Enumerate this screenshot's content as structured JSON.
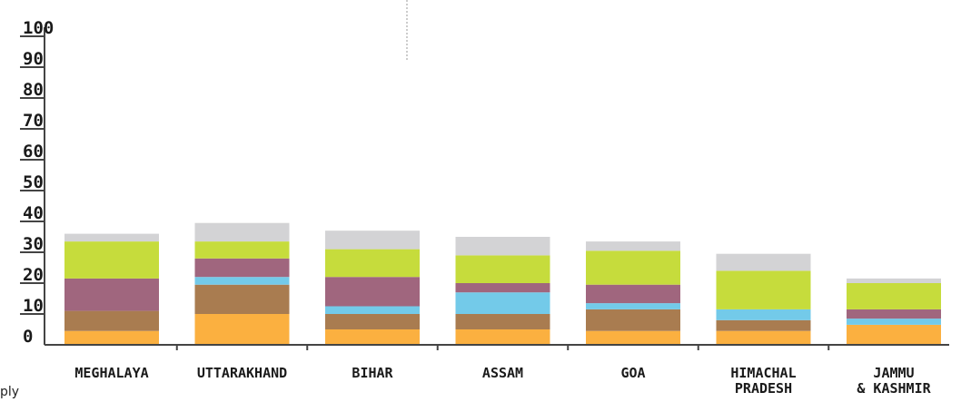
{
  "chart_data": {
    "type": "bar",
    "stacked": true,
    "ylim": [
      0,
      100
    ],
    "yticks": [
      "0",
      "10",
      "20",
      "30",
      "40",
      "50",
      "60",
      "70",
      "80",
      "90",
      "100"
    ],
    "categories": [
      [
        "MEGHALAYA"
      ],
      [
        "UTTARAKHAND"
      ],
      [
        "BIHAR"
      ],
      [
        "ASSAM"
      ],
      [
        "GOA"
      ],
      [
        "HIMACHAL",
        "PRADESH"
      ],
      [
        "JAMMU",
        "& KASHMIR"
      ]
    ],
    "series": [
      {
        "color": "#fbb040",
        "values": [
          4.5,
          10,
          5,
          5,
          4.5,
          4.5,
          6.5
        ]
      },
      {
        "color": "#a97c50",
        "values": [
          6.5,
          9.5,
          5,
          5,
          7,
          3.5,
          0
        ]
      },
      {
        "color": "#73cae9",
        "values": [
          0,
          2.5,
          2.5,
          7,
          2,
          3.5,
          2
        ]
      },
      {
        "color": "#a0667e",
        "values": [
          10.5,
          6,
          9.5,
          3,
          6,
          0,
          3
        ]
      },
      {
        "color": "#c6dc3c",
        "values": [
          12,
          5.5,
          9,
          9,
          11,
          12.5,
          8.5
        ]
      },
      {
        "color": "#d3d3d5",
        "values": [
          2.5,
          6,
          6,
          6,
          3,
          5.5,
          1.5
        ]
      }
    ],
    "grid": false,
    "legend": "none"
  },
  "footer": {
    "stray_text": "ply"
  }
}
